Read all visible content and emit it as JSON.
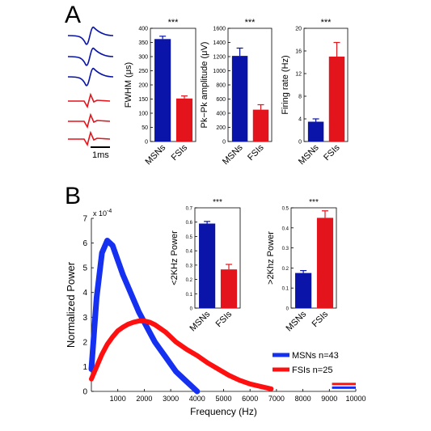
{
  "panel_labels": {
    "a": "A",
    "b": "B"
  },
  "waveform_scale_label": "1ms",
  "colors": {
    "msn": "#0a14a8",
    "fsi": "#e3141c",
    "msn_line": "#1530f0",
    "fsi_line": "#ff1010"
  },
  "chart_data": [
    {
      "type": "bar",
      "categories": [
        "MSNs",
        "FSIs"
      ],
      "values": [
        362,
        152
      ],
      "errors": [
        10,
        9
      ],
      "ylabel": "FWHM (μs)",
      "ylim": [
        0,
        400
      ],
      "yticks": [
        0,
        50,
        100,
        150,
        200,
        250,
        300,
        350,
        400
      ],
      "yticklabels": [
        "0",
        "50",
        "100",
        "150",
        "200",
        "250",
        "300",
        "350",
        "400"
      ],
      "significance": "***"
    },
    {
      "type": "bar",
      "categories": [
        "MSNs",
        "FSIs"
      ],
      "values": [
        1210,
        450
      ],
      "errors": [
        110,
        70
      ],
      "ylabel": "Pk−Pk amplitude (μV)",
      "ylim": [
        0,
        1600
      ],
      "yticks": [
        0,
        200,
        400,
        600,
        800,
        1000,
        1200,
        1400,
        1600
      ],
      "yticklabels": [
        "0",
        "200",
        "400",
        "600",
        "800",
        "1000",
        "1200",
        "1400",
        "1600"
      ],
      "significance": "***"
    },
    {
      "type": "bar",
      "categories": [
        "MSNs",
        "FSIs"
      ],
      "values": [
        3.5,
        15
      ],
      "errors": [
        0.5,
        2.5
      ],
      "ylabel": "Firing rate (Hz)",
      "ylim": [
        0,
        20
      ],
      "yticks": [
        0,
        4,
        8,
        12,
        16,
        20
      ],
      "yticklabels": [
        "0",
        "4",
        "8",
        "12",
        "16",
        "20"
      ],
      "significance": "***"
    },
    {
      "type": "line",
      "xlabel": "Frequency (Hz)",
      "ylabel": "Normalized Power",
      "xlim": [
        0,
        10000
      ],
      "ylim": [
        0,
        7
      ],
      "y_exponent_label": "x 10",
      "y_exponent_power": "-4",
      "xticks": [
        1000,
        2000,
        3000,
        4000,
        5000,
        6000,
        7000,
        8000,
        9000,
        10000
      ],
      "xticklabels": [
        "1000",
        "2000",
        "3000",
        "4000",
        "5000",
        "6000",
        "7000",
        "8000",
        "9000",
        "10000"
      ],
      "yticks": [
        0,
        1,
        2,
        3,
        4,
        5,
        6,
        7
      ],
      "yticklabels": [
        "0",
        "1",
        "2",
        "3",
        "4",
        "5",
        "6",
        "7"
      ],
      "legend_position": "lower-right",
      "series": [
        {
          "name": "MSNs n=43",
          "x": [
            0,
            200,
            400,
            600,
            800,
            1000,
            1200,
            1400,
            1600,
            1800,
            2000,
            2200,
            2400,
            2600,
            2800,
            3000,
            3200,
            3400,
            3600,
            3800,
            4000
          ],
          "y": [
            0.9,
            3.8,
            5.6,
            6.1,
            5.9,
            5.3,
            4.7,
            4.2,
            3.7,
            3.2,
            2.8,
            2.4,
            2.0,
            1.7,
            1.4,
            1.1,
            0.8,
            0.6,
            0.4,
            0.2,
            0.0
          ]
        },
        {
          "name": "FSIs n=25",
          "x": [
            0,
            200,
            400,
            600,
            800,
            1000,
            1200,
            1400,
            1600,
            1800,
            2000,
            2200,
            2400,
            2600,
            2800,
            3000,
            3200,
            3600,
            4000,
            4400,
            4800,
            5200,
            5600,
            6000,
            6400,
            6800
          ],
          "y": [
            0.5,
            1.0,
            1.5,
            1.9,
            2.2,
            2.45,
            2.6,
            2.72,
            2.8,
            2.85,
            2.85,
            2.8,
            2.7,
            2.55,
            2.4,
            2.2,
            2.0,
            1.7,
            1.45,
            1.15,
            0.9,
            0.65,
            0.45,
            0.3,
            0.2,
            0.1
          ]
        }
      ]
    },
    {
      "type": "bar",
      "categories": [
        "MSNs",
        "FSIs"
      ],
      "values": [
        0.59,
        0.27
      ],
      "errors": [
        0.015,
        0.035
      ],
      "ylabel": "<2KHz Power",
      "ylim": [
        0,
        0.7
      ],
      "yticks": [
        0,
        0.1,
        0.2,
        0.3,
        0.4,
        0.5,
        0.6,
        0.7
      ],
      "yticklabels": [
        "0",
        "0.1",
        "0.2",
        "0.3",
        "0.4",
        "0.5",
        "0.6",
        "0.7"
      ],
      "significance": "***"
    },
    {
      "type": "bar",
      "categories": [
        "MSNs",
        "FSIs"
      ],
      "values": [
        0.175,
        0.45
      ],
      "errors": [
        0.012,
        0.035
      ],
      "ylabel": ">2Khz Power",
      "ylim": [
        0,
        0.5
      ],
      "yticks": [
        0,
        0.1,
        0.2,
        0.3,
        0.4,
        0.5
      ],
      "yticklabels": [
        "0",
        "0.1",
        "0.2",
        "0.3",
        "0.4",
        "0.5"
      ],
      "significance": "***"
    }
  ]
}
